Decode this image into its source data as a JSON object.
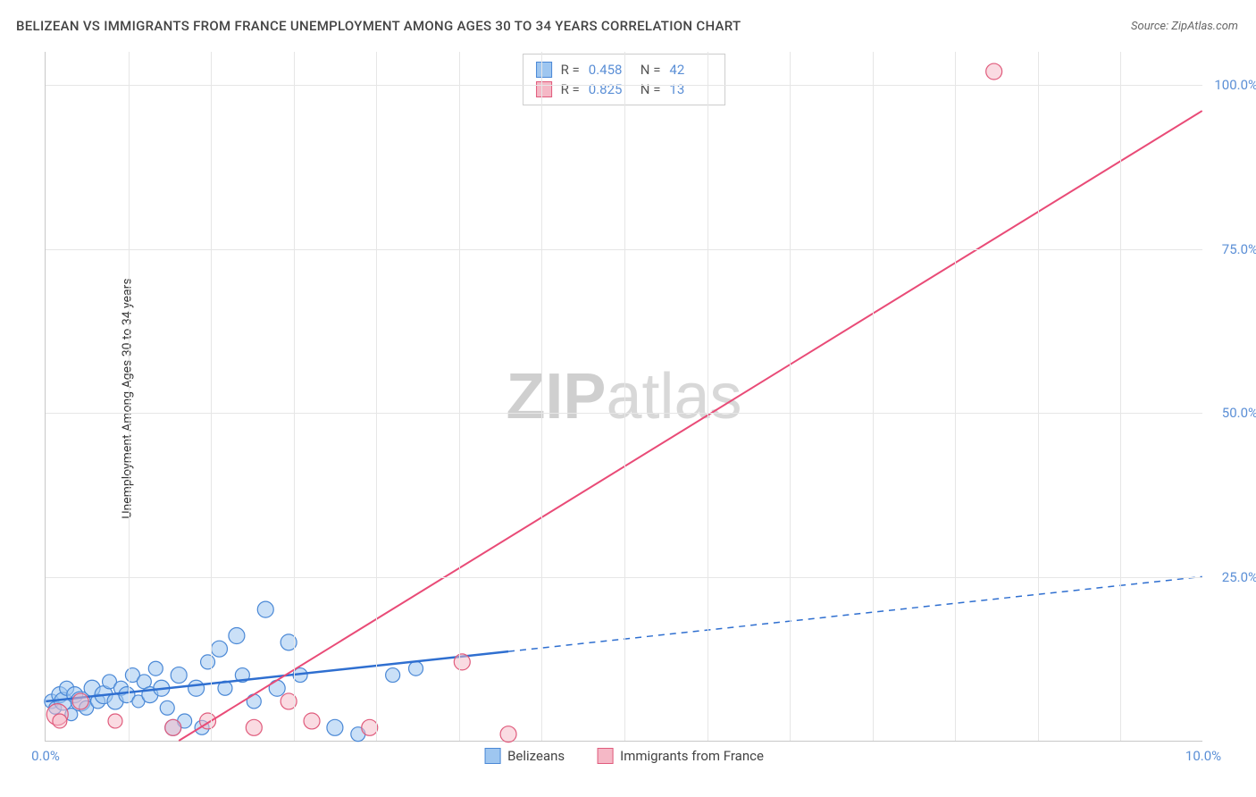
{
  "title": "BELIZEAN VS IMMIGRANTS FROM FRANCE UNEMPLOYMENT AMONG AGES 30 TO 34 YEARS CORRELATION CHART",
  "source": "Source: ZipAtlas.com",
  "ylabel": "Unemployment Among Ages 30 to 34 years",
  "watermark_a": "ZIP",
  "watermark_b": "atlas",
  "chart": {
    "type": "scatter",
    "xlim": [
      0,
      10
    ],
    "ylim": [
      0,
      105
    ],
    "x_ticks": [
      0,
      10
    ],
    "x_tick_labels": [
      "0.0%",
      "10.0%"
    ],
    "y_ticks": [
      25,
      50,
      75,
      100
    ],
    "y_tick_labels": [
      "25.0%",
      "50.0%",
      "75.0%",
      "100.0%"
    ],
    "grid_color": "#e6e6e6",
    "background_color": "#ffffff",
    "series": [
      {
        "name": "Belizeans",
        "R": "0.458",
        "N": "42",
        "marker_fill": "#9ec6f0",
        "marker_stroke": "#4a88d6",
        "marker_opacity": 0.55,
        "line_color": "#2f6fd0",
        "line_width": 2.5,
        "line_dash_after_x": 4.0,
        "line": {
          "x1": 0,
          "y1": 6,
          "x2": 10,
          "y2": 25
        },
        "points": [
          {
            "x": 0.05,
            "y": 6,
            "r": 8
          },
          {
            "x": 0.08,
            "y": 5,
            "r": 7
          },
          {
            "x": 0.12,
            "y": 7,
            "r": 9
          },
          {
            "x": 0.15,
            "y": 6,
            "r": 10
          },
          {
            "x": 0.18,
            "y": 8,
            "r": 8
          },
          {
            "x": 0.22,
            "y": 4,
            "r": 7
          },
          {
            "x": 0.25,
            "y": 7,
            "r": 9
          },
          {
            "x": 0.3,
            "y": 6,
            "r": 11
          },
          {
            "x": 0.35,
            "y": 5,
            "r": 8
          },
          {
            "x": 0.4,
            "y": 8,
            "r": 9
          },
          {
            "x": 0.45,
            "y": 6,
            "r": 8
          },
          {
            "x": 0.5,
            "y": 7,
            "r": 10
          },
          {
            "x": 0.55,
            "y": 9,
            "r": 8
          },
          {
            "x": 0.6,
            "y": 6,
            "r": 9
          },
          {
            "x": 0.65,
            "y": 8,
            "r": 8
          },
          {
            "x": 0.7,
            "y": 7,
            "r": 9
          },
          {
            "x": 0.75,
            "y": 10,
            "r": 8
          },
          {
            "x": 0.8,
            "y": 6,
            "r": 7
          },
          {
            "x": 0.85,
            "y": 9,
            "r": 8
          },
          {
            "x": 0.9,
            "y": 7,
            "r": 9
          },
          {
            "x": 0.95,
            "y": 11,
            "r": 8
          },
          {
            "x": 1.0,
            "y": 8,
            "r": 9
          },
          {
            "x": 1.05,
            "y": 5,
            "r": 8
          },
          {
            "x": 1.1,
            "y": 2,
            "r": 9
          },
          {
            "x": 1.15,
            "y": 10,
            "r": 9
          },
          {
            "x": 1.2,
            "y": 3,
            "r": 8
          },
          {
            "x": 1.3,
            "y": 8,
            "r": 9
          },
          {
            "x": 1.35,
            "y": 2,
            "r": 8
          },
          {
            "x": 1.4,
            "y": 12,
            "r": 8
          },
          {
            "x": 1.5,
            "y": 14,
            "r": 9
          },
          {
            "x": 1.55,
            "y": 8,
            "r": 8
          },
          {
            "x": 1.65,
            "y": 16,
            "r": 9
          },
          {
            "x": 1.7,
            "y": 10,
            "r": 8
          },
          {
            "x": 1.8,
            "y": 6,
            "r": 8
          },
          {
            "x": 1.9,
            "y": 20,
            "r": 9
          },
          {
            "x": 2.0,
            "y": 8,
            "r": 9
          },
          {
            "x": 2.1,
            "y": 15,
            "r": 9
          },
          {
            "x": 2.2,
            "y": 10,
            "r": 8
          },
          {
            "x": 2.5,
            "y": 2,
            "r": 9
          },
          {
            "x": 2.7,
            "y": 1,
            "r": 8
          },
          {
            "x": 3.0,
            "y": 10,
            "r": 8
          },
          {
            "x": 3.2,
            "y": 11,
            "r": 8
          }
        ]
      },
      {
        "name": "Immigrants from France",
        "R": "0.825",
        "N": "13",
        "marker_fill": "#f5b8c6",
        "marker_stroke": "#e05b7c",
        "marker_opacity": 0.5,
        "line_color": "#e94b77",
        "line_width": 2,
        "line": {
          "x1": 1.15,
          "y1": 0,
          "x2": 10,
          "y2": 96
        },
        "points": [
          {
            "x": 0.1,
            "y": 4,
            "r": 12
          },
          {
            "x": 0.12,
            "y": 3,
            "r": 8
          },
          {
            "x": 0.3,
            "y": 6,
            "r": 9
          },
          {
            "x": 0.6,
            "y": 3,
            "r": 8
          },
          {
            "x": 1.1,
            "y": 2,
            "r": 9
          },
          {
            "x": 1.4,
            "y": 3,
            "r": 9
          },
          {
            "x": 1.8,
            "y": 2,
            "r": 9
          },
          {
            "x": 2.1,
            "y": 6,
            "r": 9
          },
          {
            "x": 2.3,
            "y": 3,
            "r": 9
          },
          {
            "x": 2.8,
            "y": 2,
            "r": 9
          },
          {
            "x": 3.6,
            "y": 12,
            "r": 9
          },
          {
            "x": 4.0,
            "y": 1,
            "r": 9
          },
          {
            "x": 8.2,
            "y": 102,
            "r": 9
          }
        ]
      }
    ],
    "legend_position": "top-center",
    "bottom_legend_labels": [
      "Belizeans",
      "Immigrants from France"
    ]
  }
}
